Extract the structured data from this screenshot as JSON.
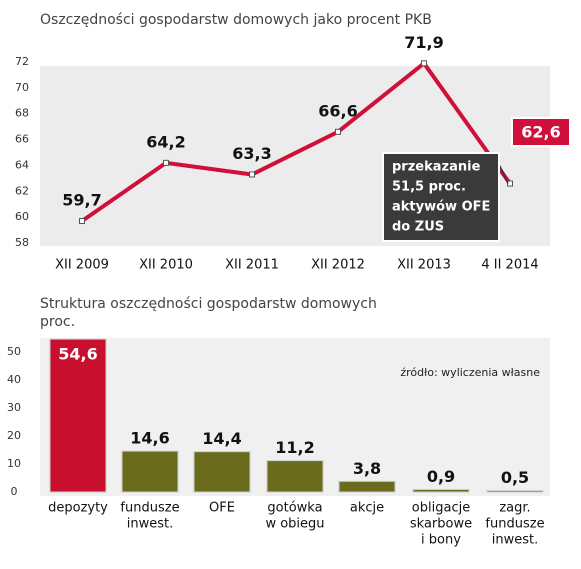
{
  "chart_data": [
    {
      "type": "line",
      "title": "Oszczędności gospodarstw domowych jako procent PKB",
      "categories": [
        "XII 2009",
        "XII 2010",
        "XII 2011",
        "XII 2012",
        "XII 2013",
        "4 II 2014"
      ],
      "values": [
        59.7,
        64.2,
        63.3,
        66.6,
        71.9,
        62.6
      ],
      "value_labels": [
        "59,7",
        "64,2",
        "63,3",
        "66,6",
        "71,9",
        "62,6"
      ],
      "color": "#d0103a",
      "ylim": [
        58,
        72
      ],
      "yticks": [
        58,
        60,
        62,
        64,
        66,
        68,
        70,
        72
      ],
      "annotation": [
        "przekazanie",
        "51,5 proc.",
        "aktywów OFE",
        "do ZUS"
      ]
    },
    {
      "type": "bar",
      "title": "Struktura oszczędności gospodarstw domowych",
      "subtitle": "proc.",
      "source": "źródło: wyliczenia własne",
      "categories": [
        [
          "depozyty"
        ],
        [
          "fundusze",
          "inwest."
        ],
        [
          "OFE"
        ],
        [
          "gotówka",
          "w obiegu"
        ],
        [
          "akcje"
        ],
        [
          "obligacje",
          "skarbowe",
          "i bony"
        ],
        [
          "zagr.",
          "fundusze",
          "inwest."
        ]
      ],
      "values": [
        54.6,
        14.6,
        14.4,
        11.2,
        3.8,
        0.9,
        0.5
      ],
      "value_labels": [
        "54,6",
        "14,6",
        "14,4",
        "11,2",
        "3,8",
        "0,9",
        "0,5"
      ],
      "colors": [
        "#c8102e",
        "#6b6b1e",
        "#6b6b1e",
        "#6b6b1e",
        "#6b6b1e",
        "#6b6b1e",
        "#6b6b1e"
      ],
      "ylim": [
        0,
        55
      ],
      "yticks": [
        0,
        10,
        20,
        30,
        40,
        50
      ]
    }
  ]
}
